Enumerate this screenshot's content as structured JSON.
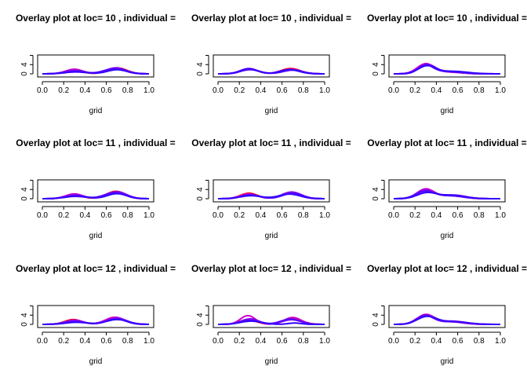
{
  "chart_data": [
    {
      "type": "line",
      "title": "Overlay plot at loc= 10 , individual =",
      "xlabel": "grid",
      "xlim": [
        0,
        1
      ],
      "ylim": [
        0,
        7.5
      ],
      "xticks": [
        "0.0",
        "0.2",
        "0.4",
        "0.6",
        "0.8",
        "1.0"
      ],
      "yticks": [
        "0",
        "4"
      ],
      "series": [
        {
          "color": "#ff0000",
          "peaks": [
            [
              0.29,
              1.7,
              0.08
            ],
            [
              0.7,
              2.6,
              0.09
            ]
          ]
        },
        {
          "color": "#cc00cc",
          "peaks": [
            [
              0.3,
              2.0,
              0.08
            ],
            [
              0.68,
              2.4,
              0.09
            ]
          ]
        },
        {
          "color": "#8800ee",
          "peaks": [
            [
              0.3,
              1.5,
              0.09
            ],
            [
              0.69,
              2.6,
              0.09
            ]
          ]
        },
        {
          "color": "#5500ff",
          "peaks": [
            [
              0.31,
              0.8,
              0.1
            ],
            [
              0.68,
              2.3,
              0.1
            ]
          ]
        },
        {
          "color": "#3300ff",
          "peaks": [
            [
              0.32,
              1.0,
              0.1
            ],
            [
              0.7,
              1.8,
              0.09
            ]
          ]
        }
      ]
    },
    {
      "type": "line",
      "title": "Overlay plot at loc= 10 , individual =",
      "xlabel": "grid",
      "xlim": [
        0,
        1
      ],
      "ylim": [
        0,
        7.5
      ],
      "xticks": [
        "0.0",
        "0.2",
        "0.4",
        "0.6",
        "0.8",
        "1.0"
      ],
      "yticks": [
        "0",
        "4"
      ],
      "series": [
        {
          "color": "#ff0000",
          "peaks": [
            [
              0.29,
              2.1,
              0.08
            ],
            [
              0.68,
              2.3,
              0.09
            ]
          ]
        },
        {
          "color": "#cc00cc",
          "peaks": [
            [
              0.29,
              2.3,
              0.08
            ],
            [
              0.68,
              2.0,
              0.09
            ]
          ]
        },
        {
          "color": "#8800ee",
          "peaks": [
            [
              0.3,
              2.0,
              0.08
            ],
            [
              0.69,
              1.9,
              0.09
            ]
          ]
        },
        {
          "color": "#5500ff",
          "peaks": [
            [
              0.3,
              1.8,
              0.09
            ],
            [
              0.7,
              1.6,
              0.09
            ]
          ]
        },
        {
          "color": "#3300ff",
          "peaks": [
            [
              0.29,
              2.2,
              0.08
            ],
            [
              0.67,
              1.8,
              0.09
            ]
          ]
        }
      ]
    },
    {
      "type": "line",
      "title": "Overlay plot at loc= 10 , individual =",
      "xlabel": "grid",
      "xlim": [
        0,
        1
      ],
      "ylim": [
        0,
        7.5
      ],
      "xticks": [
        "0.0",
        "0.2",
        "0.4",
        "0.6",
        "0.8",
        "1.0"
      ],
      "yticks": [
        "0",
        "4"
      ],
      "series": [
        {
          "color": "#ff0000",
          "peaks": [
            [
              0.3,
              3.8,
              0.08
            ],
            [
              0.5,
              0.9,
              0.12
            ]
          ]
        },
        {
          "color": "#cc00cc",
          "peaks": [
            [
              0.3,
              4.3,
              0.08
            ],
            [
              0.52,
              0.7,
              0.12
            ]
          ]
        },
        {
          "color": "#8800ee",
          "peaks": [
            [
              0.31,
              4.0,
              0.08
            ],
            [
              0.55,
              0.8,
              0.14
            ]
          ]
        },
        {
          "color": "#5500ff",
          "peaks": [
            [
              0.3,
              3.6,
              0.07
            ],
            [
              0.5,
              1.0,
              0.12
            ]
          ]
        },
        {
          "color": "#3300ff",
          "peaks": [
            [
              0.31,
              3.3,
              0.08
            ],
            [
              0.55,
              1.1,
              0.14
            ]
          ]
        }
      ]
    },
    {
      "type": "line",
      "title": "Overlay plot at loc= 11 , individual =",
      "xlabel": "grid",
      "xlim": [
        0,
        1
      ],
      "ylim": [
        0,
        7.5
      ],
      "xticks": [
        "0.0",
        "0.2",
        "0.4",
        "0.6",
        "0.8",
        "1.0"
      ],
      "yticks": [
        "0",
        "4"
      ],
      "series": [
        {
          "color": "#ff0000",
          "peaks": [
            [
              0.29,
              1.8,
              0.08
            ],
            [
              0.69,
              3.2,
              0.09
            ]
          ]
        },
        {
          "color": "#cc00cc",
          "peaks": [
            [
              0.3,
              2.1,
              0.08
            ],
            [
              0.68,
              2.9,
              0.09
            ]
          ]
        },
        {
          "color": "#8800ee",
          "peaks": [
            [
              0.3,
              1.6,
              0.09
            ],
            [
              0.7,
              3.0,
              0.09
            ]
          ]
        },
        {
          "color": "#5500ff",
          "peaks": [
            [
              0.31,
              1.0,
              0.1
            ],
            [
              0.68,
              2.6,
              0.1
            ]
          ]
        },
        {
          "color": "#3300ff",
          "peaks": [
            [
              0.32,
              1.2,
              0.1
            ],
            [
              0.7,
              2.2,
              0.09
            ]
          ]
        }
      ]
    },
    {
      "type": "line",
      "title": "Overlay plot at loc= 11 , individual =",
      "xlabel": "grid",
      "xlim": [
        0,
        1
      ],
      "ylim": [
        0,
        7.5
      ],
      "xticks": [
        "0.0",
        "0.2",
        "0.4",
        "0.6",
        "0.8",
        "1.0"
      ],
      "yticks": [
        "0",
        "4"
      ],
      "series": [
        {
          "color": "#ff0000",
          "peaks": [
            [
              0.29,
              2.4,
              0.08
            ],
            [
              0.68,
              2.2,
              0.09
            ]
          ]
        },
        {
          "color": "#cc00cc",
          "peaks": [
            [
              0.29,
              2.1,
              0.08
            ],
            [
              0.69,
              2.6,
              0.09
            ]
          ]
        },
        {
          "color": "#8800ee",
          "peaks": [
            [
              0.3,
              1.8,
              0.08
            ],
            [
              0.69,
              2.9,
              0.09
            ]
          ]
        },
        {
          "color": "#5500ff",
          "peaks": [
            [
              0.3,
              1.6,
              0.09
            ],
            [
              0.7,
              2.4,
              0.09
            ]
          ]
        },
        {
          "color": "#3300ff",
          "peaks": [
            [
              0.31,
              1.3,
              0.1
            ],
            [
              0.67,
              2.0,
              0.1
            ]
          ]
        }
      ]
    },
    {
      "type": "line",
      "title": "Overlay plot at loc= 11 , individual =",
      "xlabel": "grid",
      "xlim": [
        0,
        1
      ],
      "ylim": [
        0,
        7.5
      ],
      "xticks": [
        "0.0",
        "0.2",
        "0.4",
        "0.6",
        "0.8",
        "1.0"
      ],
      "yticks": [
        "0",
        "4"
      ],
      "series": [
        {
          "color": "#ff0000",
          "peaks": [
            [
              0.3,
              3.9,
              0.08
            ],
            [
              0.54,
              1.4,
              0.11
            ]
          ]
        },
        {
          "color": "#cc00cc",
          "peaks": [
            [
              0.3,
              4.2,
              0.08
            ],
            [
              0.56,
              1.6,
              0.11
            ]
          ]
        },
        {
          "color": "#8800ee",
          "peaks": [
            [
              0.29,
              3.6,
              0.08
            ],
            [
              0.52,
              1.3,
              0.12
            ]
          ]
        },
        {
          "color": "#5500ff",
          "peaks": [
            [
              0.3,
              3.2,
              0.09
            ],
            [
              0.55,
              1.2,
              0.12
            ]
          ]
        },
        {
          "color": "#3300ff",
          "peaks": [
            [
              0.31,
              2.5,
              0.09
            ],
            [
              0.55,
              1.5,
              0.12
            ]
          ]
        }
      ]
    },
    {
      "type": "line",
      "title": "Overlay plot at loc= 12 , individual =",
      "xlabel": "grid",
      "xlim": [
        0,
        1
      ],
      "ylim": [
        0,
        7.5
      ],
      "xticks": [
        "0.0",
        "0.2",
        "0.4",
        "0.6",
        "0.8",
        "1.0"
      ],
      "yticks": [
        "0",
        "4"
      ],
      "series": [
        {
          "color": "#ff0000",
          "peaks": [
            [
              0.29,
              2.1,
              0.08
            ],
            [
              0.69,
              2.8,
              0.09
            ]
          ]
        },
        {
          "color": "#cc00cc",
          "peaks": [
            [
              0.3,
              1.9,
              0.08
            ],
            [
              0.68,
              3.1,
              0.09
            ]
          ]
        },
        {
          "color": "#8800ee",
          "peaks": [
            [
              0.3,
              1.6,
              0.09
            ],
            [
              0.7,
              2.7,
              0.09
            ]
          ]
        },
        {
          "color": "#5500ff",
          "peaks": [
            [
              0.31,
              1.2,
              0.1
            ],
            [
              0.69,
              2.4,
              0.09
            ]
          ]
        },
        {
          "color": "#3300ff",
          "peaks": [
            [
              0.32,
              0.9,
              0.1
            ],
            [
              0.7,
              2.1,
              0.1
            ]
          ]
        }
      ]
    },
    {
      "type": "line",
      "title": "Overlay plot at loc= 12 , individual =",
      "xlabel": "grid",
      "xlim": [
        0,
        1
      ],
      "ylim": [
        0,
        7.5
      ],
      "xticks": [
        "0.0",
        "0.2",
        "0.4",
        "0.6",
        "0.8",
        "1.0"
      ],
      "yticks": [
        "0",
        "4"
      ],
      "series": [
        {
          "color": "#ff0000",
          "peaks": [
            [
              0.28,
              2.0,
              0.08
            ],
            [
              0.7,
              2.4,
              0.09
            ]
          ]
        },
        {
          "color": "#cc00cc",
          "peaks": [
            [
              0.28,
              3.8,
              0.07
            ],
            [
              0.7,
              3.0,
              0.08
            ]
          ]
        },
        {
          "color": "#8800ee",
          "peaks": [
            [
              0.3,
              2.4,
              0.08
            ],
            [
              0.69,
              2.0,
              0.09
            ]
          ]
        },
        {
          "color": "#5500ff",
          "peaks": [
            [
              0.3,
              1.8,
              0.09
            ],
            [
              0.68,
              2.3,
              0.09
            ]
          ]
        },
        {
          "color": "#3300ff",
          "peaks": [
            [
              0.31,
              1.4,
              0.1
            ],
            [
              0.72,
              0.6,
              0.06
            ]
          ]
        }
      ]
    },
    {
      "type": "line",
      "title": "Overlay plot at loc= 12 , individual =",
      "xlabel": "grid",
      "xlim": [
        0,
        1
      ],
      "ylim": [
        0,
        7.5
      ],
      "xticks": [
        "0.0",
        "0.2",
        "0.4",
        "0.6",
        "0.8",
        "1.0"
      ],
      "yticks": [
        "0",
        "4"
      ],
      "series": [
        {
          "color": "#ff0000",
          "peaks": [
            [
              0.3,
              4.0,
              0.08
            ],
            [
              0.52,
              1.2,
              0.12
            ]
          ]
        },
        {
          "color": "#cc00cc",
          "peaks": [
            [
              0.3,
              4.2,
              0.08
            ],
            [
              0.55,
              1.4,
              0.12
            ]
          ]
        },
        {
          "color": "#8800ee",
          "peaks": [
            [
              0.29,
              3.8,
              0.08
            ],
            [
              0.53,
              1.1,
              0.12
            ]
          ]
        },
        {
          "color": "#5500ff",
          "peaks": [
            [
              0.3,
              3.6,
              0.08
            ],
            [
              0.54,
              1.3,
              0.13
            ]
          ]
        },
        {
          "color": "#3300ff",
          "peaks": [
            [
              0.31,
              3.3,
              0.09
            ],
            [
              0.56,
              1.2,
              0.13
            ]
          ]
        }
      ]
    }
  ]
}
